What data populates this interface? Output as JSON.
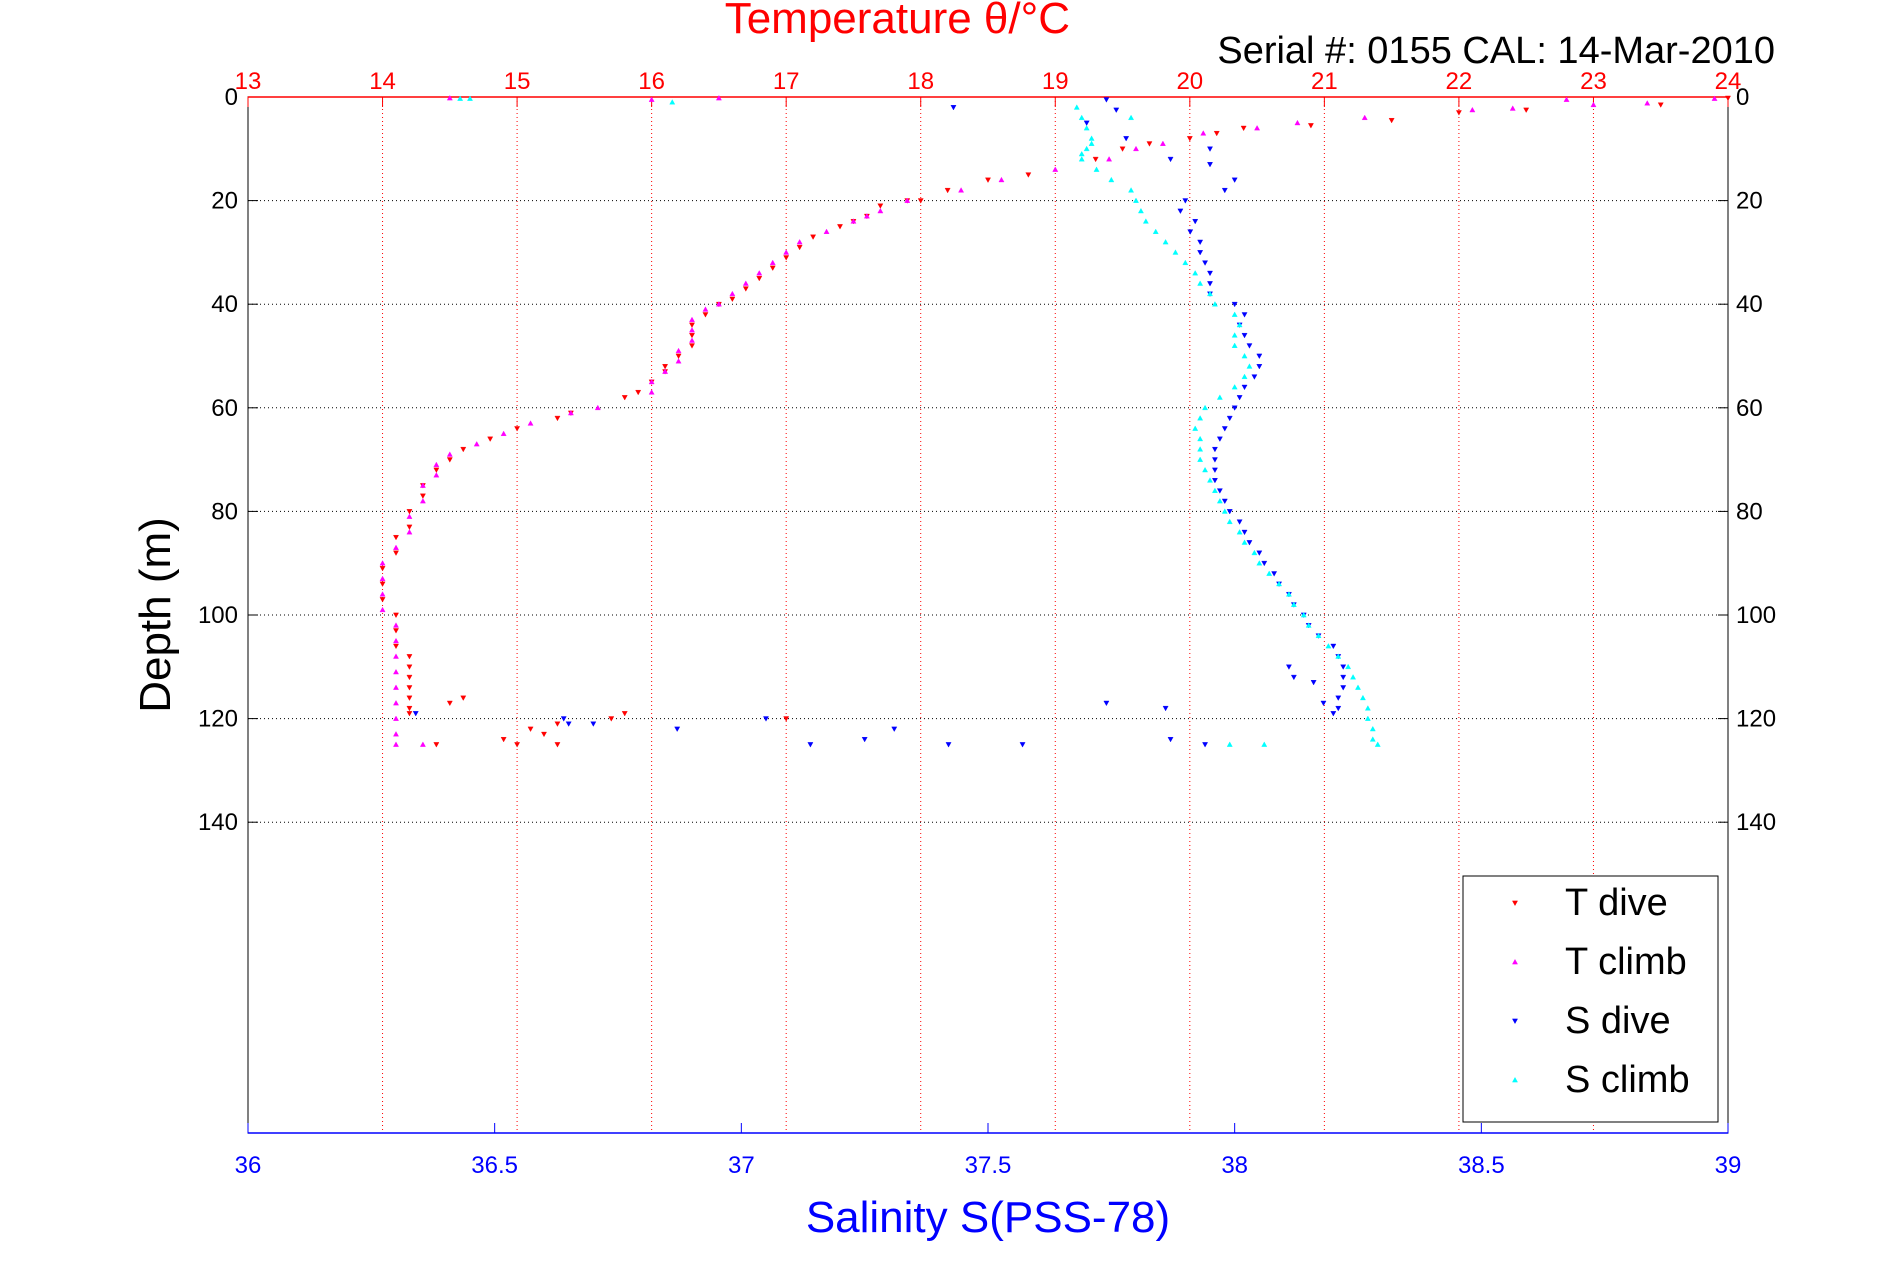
{
  "figure": {
    "title": "Temperature θ/°C",
    "serial_label": "Serial #: 0155  CAL: 14-Mar-2010",
    "colors": {
      "temperature_axis": "#ff0000",
      "salinity_axis": "#0000ff",
      "depth_axis": "#000000",
      "T_dive": "#ff0000",
      "T_climb": "#ff00ff",
      "S_dive": "#0000ff",
      "S_climb": "#00ffff"
    }
  },
  "chart_data": {
    "type": "scatter",
    "title": "Temperature θ/°C",
    "subtitle": "Serial #: 0155  CAL: 14-Mar-2010",
    "ylabel": "Depth (m)",
    "xlabel": "Salinity S(PSS-78)",
    "y_axis": {
      "range": [
        0,
        200
      ],
      "reversed": true,
      "ticks": [
        0,
        20,
        40,
        60,
        80,
        100,
        120,
        140
      ]
    },
    "x_top_axis": {
      "label": "Temperature θ/°C",
      "range": [
        13,
        24
      ],
      "ticks": [
        13,
        14,
        15,
        16,
        17,
        18,
        19,
        20,
        21,
        22,
        23,
        24
      ]
    },
    "x_bottom_axis": {
      "label": "Salinity S(PSS-78)",
      "range": [
        36,
        39
      ],
      "ticks": [
        "36",
        "36.5",
        "37",
        "37.5",
        "38",
        "38.5",
        "39"
      ]
    },
    "grid": true,
    "legend_position": "bottom-right",
    "legend": [
      "T dive",
      "T climb",
      "S dive",
      "S climb"
    ],
    "series": [
      {
        "name": "T dive",
        "axis": "temperature",
        "marker": "triangle-down",
        "points": [
          [
            24.0,
            0.2
          ],
          [
            23.5,
            1.5
          ],
          [
            22.5,
            2.5
          ],
          [
            22.0,
            3
          ],
          [
            21.5,
            4.5
          ],
          [
            20.9,
            5.5
          ],
          [
            20.4,
            6
          ],
          [
            20.2,
            7
          ],
          [
            20.0,
            8
          ],
          [
            19.7,
            9
          ],
          [
            19.5,
            10
          ],
          [
            19.3,
            12
          ],
          [
            18.8,
            15
          ],
          [
            18.5,
            16
          ],
          [
            18.2,
            18
          ],
          [
            18.0,
            20
          ],
          [
            17.9,
            20
          ],
          [
            17.7,
            21
          ],
          [
            17.6,
            23
          ],
          [
            17.5,
            24
          ],
          [
            17.4,
            25
          ],
          [
            17.2,
            27
          ],
          [
            17.1,
            29
          ],
          [
            17.0,
            31
          ],
          [
            16.9,
            33
          ],
          [
            16.8,
            35
          ],
          [
            16.7,
            37
          ],
          [
            16.6,
            39
          ],
          [
            16.5,
            40
          ],
          [
            16.4,
            42
          ],
          [
            16.3,
            44
          ],
          [
            16.3,
            46
          ],
          [
            16.3,
            48
          ],
          [
            16.2,
            50
          ],
          [
            16.1,
            52
          ],
          [
            16.1,
            53
          ],
          [
            16.0,
            55
          ],
          [
            15.9,
            57
          ],
          [
            15.8,
            58
          ],
          [
            15.4,
            61
          ],
          [
            15.3,
            62
          ],
          [
            15.0,
            64
          ],
          [
            14.8,
            66
          ],
          [
            14.6,
            68
          ],
          [
            14.5,
            70
          ],
          [
            14.4,
            72
          ],
          [
            14.3,
            75
          ],
          [
            14.3,
            77
          ],
          [
            14.2,
            80
          ],
          [
            14.2,
            83
          ],
          [
            14.1,
            85
          ],
          [
            14.1,
            88
          ],
          [
            14.0,
            91
          ],
          [
            14.0,
            94
          ],
          [
            14.0,
            97
          ],
          [
            14.1,
            100
          ],
          [
            14.1,
            103
          ],
          [
            14.1,
            106
          ],
          [
            14.2,
            108
          ],
          [
            14.2,
            110
          ],
          [
            14.2,
            112
          ],
          [
            14.2,
            114
          ],
          [
            14.2,
            116
          ],
          [
            14.2,
            118
          ],
          [
            14.5,
            117
          ],
          [
            14.6,
            116
          ],
          [
            14.2,
            119
          ],
          [
            15.8,
            119
          ],
          [
            15.7,
            120
          ],
          [
            15.3,
            121
          ],
          [
            15.1,
            122
          ],
          [
            15.2,
            123
          ],
          [
            14.9,
            124
          ],
          [
            15.0,
            125
          ],
          [
            15.3,
            125
          ],
          [
            14.4,
            125
          ],
          [
            17.0,
            120
          ]
        ]
      },
      {
        "name": "T climb",
        "axis": "temperature",
        "marker": "triangle-up",
        "points": [
          [
            23.9,
            0.3
          ],
          [
            23.4,
            1.2
          ],
          [
            23.0,
            1.5
          ],
          [
            22.4,
            2.2
          ],
          [
            22.1,
            2.5
          ],
          [
            21.3,
            4
          ],
          [
            20.8,
            5
          ],
          [
            20.5,
            6
          ],
          [
            20.1,
            7
          ],
          [
            19.8,
            9
          ],
          [
            19.6,
            10
          ],
          [
            19.4,
            12
          ],
          [
            19.0,
            14
          ],
          [
            18.6,
            16
          ],
          [
            18.3,
            18
          ],
          [
            17.9,
            20
          ],
          [
            17.7,
            22
          ],
          [
            17.6,
            23
          ],
          [
            17.5,
            24
          ],
          [
            17.3,
            26
          ],
          [
            17.1,
            28
          ],
          [
            17.0,
            30
          ],
          [
            16.9,
            32
          ],
          [
            16.8,
            34
          ],
          [
            16.7,
            36
          ],
          [
            16.6,
            38
          ],
          [
            16.5,
            40
          ],
          [
            16.4,
            41
          ],
          [
            16.3,
            43
          ],
          [
            16.3,
            45
          ],
          [
            16.3,
            47
          ],
          [
            16.2,
            49
          ],
          [
            16.2,
            51
          ],
          [
            16.1,
            53
          ],
          [
            16.0,
            55
          ],
          [
            16.0,
            57
          ],
          [
            15.6,
            60
          ],
          [
            15.4,
            61
          ],
          [
            15.1,
            63
          ],
          [
            14.9,
            65
          ],
          [
            14.7,
            67
          ],
          [
            14.5,
            69
          ],
          [
            14.4,
            71
          ],
          [
            14.4,
            73
          ],
          [
            14.3,
            75
          ],
          [
            14.3,
            78
          ],
          [
            14.2,
            81
          ],
          [
            14.2,
            84
          ],
          [
            14.1,
            87
          ],
          [
            14.0,
            90
          ],
          [
            14.0,
            93
          ],
          [
            14.0,
            96
          ],
          [
            14.0,
            99
          ],
          [
            14.1,
            102
          ],
          [
            14.1,
            105
          ],
          [
            14.1,
            108
          ],
          [
            14.1,
            111
          ],
          [
            14.1,
            114
          ],
          [
            14.1,
            117
          ],
          [
            14.1,
            120
          ],
          [
            14.1,
            123
          ],
          [
            14.1,
            125
          ],
          [
            14.3,
            125
          ],
          [
            14.5,
            0.2
          ],
          [
            16.0,
            0.5
          ],
          [
            16.5,
            0.2
          ],
          [
            22.8,
            0.5
          ]
        ]
      },
      {
        "name": "S dive",
        "axis": "salinity",
        "marker": "triangle-down",
        "points": [
          [
            37.43,
            2
          ],
          [
            37.74,
            0.5
          ],
          [
            37.76,
            2.5
          ],
          [
            37.7,
            5
          ],
          [
            37.78,
            8
          ],
          [
            37.95,
            10
          ],
          [
            37.87,
            12
          ],
          [
            37.95,
            13
          ],
          [
            38.0,
            16
          ],
          [
            37.98,
            18
          ],
          [
            37.9,
            20
          ],
          [
            37.89,
            22
          ],
          [
            37.92,
            24
          ],
          [
            37.91,
            26
          ],
          [
            37.93,
            28
          ],
          [
            37.93,
            30
          ],
          [
            37.94,
            32
          ],
          [
            37.95,
            34
          ],
          [
            37.95,
            36
          ],
          [
            37.95,
            38
          ],
          [
            38.0,
            40
          ],
          [
            38.02,
            42
          ],
          [
            38.01,
            44
          ],
          [
            38.02,
            46
          ],
          [
            38.03,
            48
          ],
          [
            38.05,
            50
          ],
          [
            38.05,
            52
          ],
          [
            38.04,
            54
          ],
          [
            38.02,
            56
          ],
          [
            38.01,
            58
          ],
          [
            38.0,
            60
          ],
          [
            37.99,
            62
          ],
          [
            37.98,
            64
          ],
          [
            37.97,
            66
          ],
          [
            37.96,
            68
          ],
          [
            37.96,
            70
          ],
          [
            37.96,
            72
          ],
          [
            37.96,
            74
          ],
          [
            37.97,
            76
          ],
          [
            37.98,
            78
          ],
          [
            37.99,
            80
          ],
          [
            38.01,
            82
          ],
          [
            38.02,
            84
          ],
          [
            38.03,
            86
          ],
          [
            38.05,
            88
          ],
          [
            38.06,
            90
          ],
          [
            38.08,
            92
          ],
          [
            38.09,
            94
          ],
          [
            38.11,
            96
          ],
          [
            38.12,
            98
          ],
          [
            38.14,
            100
          ],
          [
            38.15,
            102
          ],
          [
            38.17,
            104
          ],
          [
            38.2,
            106
          ],
          [
            38.21,
            108
          ],
          [
            38.22,
            110
          ],
          [
            38.22,
            112
          ],
          [
            38.22,
            114
          ],
          [
            38.21,
            116
          ],
          [
            38.21,
            118
          ],
          [
            38.2,
            119
          ],
          [
            38.11,
            110
          ],
          [
            38.12,
            112
          ],
          [
            38.16,
            113
          ],
          [
            38.18,
            117
          ],
          [
            36.34,
            119
          ],
          [
            36.64,
            120
          ],
          [
            36.7,
            121
          ],
          [
            37.05,
            120
          ],
          [
            37.14,
            125
          ],
          [
            37.25,
            124
          ],
          [
            37.31,
            122
          ],
          [
            37.42,
            125
          ],
          [
            37.57,
            125
          ],
          [
            37.74,
            117
          ],
          [
            37.86,
            118
          ],
          [
            37.87,
            124
          ],
          [
            37.94,
            125
          ],
          [
            36.87,
            122
          ],
          [
            36.65,
            121
          ]
        ]
      },
      {
        "name": "S climb",
        "axis": "salinity",
        "marker": "triangle-up",
        "points": [
          [
            37.68,
            2
          ],
          [
            37.69,
            4
          ],
          [
            37.7,
            6
          ],
          [
            37.71,
            8
          ],
          [
            37.7,
            10
          ],
          [
            37.69,
            12
          ],
          [
            37.72,
            14
          ],
          [
            37.75,
            16
          ],
          [
            37.79,
            18
          ],
          [
            37.8,
            20
          ],
          [
            37.81,
            22
          ],
          [
            37.82,
            24
          ],
          [
            37.84,
            26
          ],
          [
            37.86,
            28
          ],
          [
            37.88,
            30
          ],
          [
            37.9,
            32
          ],
          [
            37.92,
            34
          ],
          [
            37.93,
            36
          ],
          [
            37.95,
            38
          ],
          [
            37.96,
            40
          ],
          [
            38.0,
            42
          ],
          [
            38.01,
            44
          ],
          [
            38.0,
            46
          ],
          [
            38.0,
            48
          ],
          [
            38.02,
            50
          ],
          [
            38.03,
            52
          ],
          [
            38.02,
            54
          ],
          [
            38.0,
            56
          ],
          [
            37.97,
            58
          ],
          [
            37.94,
            60
          ],
          [
            37.93,
            62
          ],
          [
            37.92,
            64
          ],
          [
            37.93,
            66
          ],
          [
            37.93,
            68
          ],
          [
            37.93,
            70
          ],
          [
            37.94,
            72
          ],
          [
            37.95,
            74
          ],
          [
            37.96,
            76
          ],
          [
            37.97,
            78
          ],
          [
            37.98,
            80
          ],
          [
            37.99,
            82
          ],
          [
            38.01,
            84
          ],
          [
            38.02,
            86
          ],
          [
            38.04,
            88
          ],
          [
            38.05,
            90
          ],
          [
            38.07,
            92
          ],
          [
            38.09,
            94
          ],
          [
            38.11,
            96
          ],
          [
            38.12,
            98
          ],
          [
            38.14,
            100
          ],
          [
            38.15,
            102
          ],
          [
            38.17,
            104
          ],
          [
            38.19,
            106
          ],
          [
            38.21,
            108
          ],
          [
            38.23,
            110
          ],
          [
            38.24,
            112
          ],
          [
            38.25,
            114
          ],
          [
            38.26,
            116
          ],
          [
            38.27,
            118
          ],
          [
            38.27,
            120
          ],
          [
            38.28,
            122
          ],
          [
            38.28,
            124
          ],
          [
            38.29,
            125
          ],
          [
            37.99,
            125
          ],
          [
            38.06,
            125
          ],
          [
            37.79,
            4
          ],
          [
            37.71,
            9
          ],
          [
            37.69,
            11
          ],
          [
            36.43,
            0.3
          ],
          [
            36.45,
            0.3
          ],
          [
            36.86,
            1
          ]
        ]
      }
    ]
  }
}
